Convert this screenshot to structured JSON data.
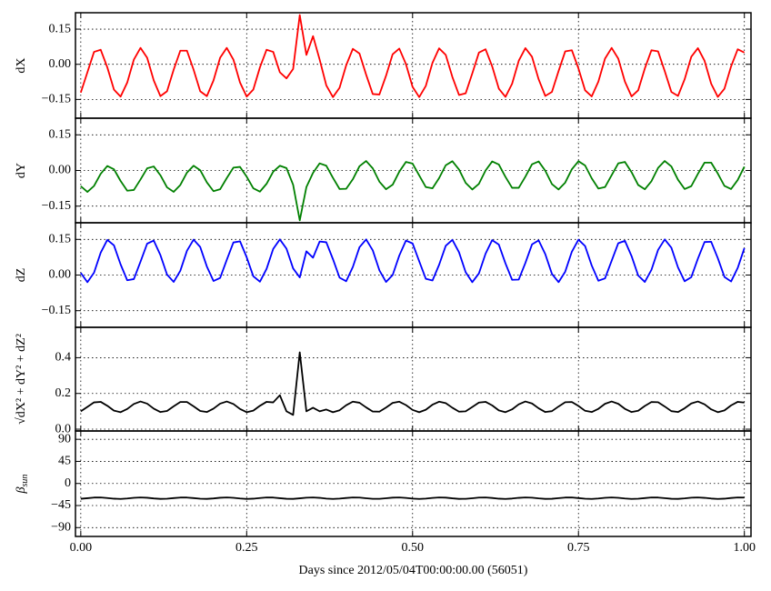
{
  "chart_data": [
    {
      "type": "line",
      "ylabel": "dX",
      "color": "#ff0000",
      "x": [
        0,
        0.01,
        0.02,
        0.03,
        0.04,
        0.05,
        0.06,
        0.07,
        0.08,
        0.09,
        0.1,
        0.11,
        0.12,
        0.13,
        0.14,
        0.15,
        0.16,
        0.17,
        0.18,
        0.19,
        0.2,
        0.21,
        0.22,
        0.23,
        0.24,
        0.25,
        0.26,
        0.27,
        0.28,
        0.29,
        0.3,
        0.31,
        0.32,
        0.33,
        0.34,
        0.35,
        0.36,
        0.37,
        0.38,
        0.39,
        0.4,
        0.41,
        0.42,
        0.43,
        0.44,
        0.45,
        0.46,
        0.47,
        0.48,
        0.49,
        0.5,
        0.51,
        0.52,
        0.53,
        0.54,
        0.55,
        0.56,
        0.57,
        0.58,
        0.59,
        0.6,
        0.61,
        0.62,
        0.63,
        0.64,
        0.65,
        0.66,
        0.67,
        0.68,
        0.69,
        0.7,
        0.71,
        0.72,
        0.73,
        0.74,
        0.75,
        0.76,
        0.77,
        0.78,
        0.79,
        0.8,
        0.81,
        0.82,
        0.83,
        0.84,
        0.85,
        0.86,
        0.87,
        0.88,
        0.89,
        0.9,
        0.91,
        0.92,
        0.93,
        0.94,
        0.95,
        0.96,
        0.97,
        0.98,
        0.99,
        1
      ],
      "values": [
        -0.121,
        -0.034,
        0.053,
        0.062,
        -0.013,
        -0.108,
        -0.138,
        -0.078,
        0.02,
        0.07,
        0.028,
        -0.069,
        -0.136,
        -0.115,
        -0.023,
        0.058,
        0.058,
        -0.023,
        -0.115,
        -0.136,
        -0.069,
        0.028,
        0.07,
        0.02,
        -0.078,
        -0.138,
        -0.108,
        -0.013,
        0.062,
        0.053,
        -0.034,
        -0.06,
        -0.02,
        0.21,
        0.04,
        0.12,
        0.02,
        -0.09,
        -0.14,
        -0.1,
        -0.004,
        0.066,
        0.046,
        -0.044,
        -0.127,
        -0.129,
        -0.049,
        0.043,
        0.067,
        0.001,
        -0.096,
        -0.14,
        -0.092,
        0.006,
        0.068,
        0.04,
        -0.054,
        -0.131,
        -0.124,
        -0.039,
        0.05,
        0.064,
        -0.009,
        -0.104,
        -0.139,
        -0.083,
        0.015,
        0.069,
        0.032,
        -0.064,
        -0.135,
        -0.118,
        -0.029,
        0.055,
        0.06,
        -0.018,
        -0.111,
        -0.137,
        -0.074,
        0.024,
        0.07,
        0.024,
        -0.074,
        -0.137,
        -0.111,
        -0.018,
        0.06,
        0.055,
        -0.029,
        -0.118,
        -0.135,
        -0.064,
        0.032,
        0.069,
        0.015,
        -0.083,
        -0.139,
        -0.104,
        -0.009,
        0.064,
        0.05
      ],
      "xlim": [
        -0.008,
        1.01
      ],
      "ylim": [
        -0.23,
        0.22
      ],
      "yticks": [
        {
          "value": -0.15,
          "label": "−0.15"
        },
        {
          "value": 0,
          "label": "0.00"
        },
        0.15
      ],
      "grid": true
    },
    {
      "type": "line",
      "ylabel": "dY",
      "color": "#008000",
      "x": [
        0,
        0.01,
        0.02,
        0.03,
        0.04,
        0.05,
        0.06,
        0.07,
        0.08,
        0.09,
        0.1,
        0.11,
        0.12,
        0.13,
        0.14,
        0.15,
        0.16,
        0.17,
        0.18,
        0.19,
        0.2,
        0.21,
        0.22,
        0.23,
        0.24,
        0.25,
        0.26,
        0.27,
        0.28,
        0.29,
        0.3,
        0.31,
        0.32,
        0.33,
        0.34,
        0.35,
        0.36,
        0.37,
        0.38,
        0.39,
        0.4,
        0.41,
        0.42,
        0.43,
        0.44,
        0.45,
        0.46,
        0.47,
        0.48,
        0.49,
        0.5,
        0.51,
        0.52,
        0.53,
        0.54,
        0.55,
        0.56,
        0.57,
        0.58,
        0.59,
        0.6,
        0.61,
        0.62,
        0.63,
        0.64,
        0.65,
        0.66,
        0.67,
        0.68,
        0.69,
        0.7,
        0.71,
        0.72,
        0.73,
        0.74,
        0.75,
        0.76,
        0.77,
        0.78,
        0.79,
        0.8,
        0.81,
        0.82,
        0.83,
        0.84,
        0.85,
        0.86,
        0.87,
        0.88,
        0.89,
        0.9,
        0.91,
        0.92,
        0.93,
        0.94,
        0.95,
        0.96,
        0.97,
        0.98,
        0.99,
        1
      ],
      "values": [
        -0.066,
        -0.09,
        -0.065,
        -0.014,
        0.019,
        0.005,
        -0.044,
        -0.085,
        -0.082,
        -0.038,
        0.009,
        0.017,
        -0.02,
        -0.071,
        -0.09,
        -0.061,
        -0.009,
        0.02,
        0.001,
        -0.05,
        -0.087,
        -0.079,
        -0.032,
        0.012,
        0.015,
        -0.026,
        -0.075,
        -0.089,
        -0.056,
        -0.005,
        0.02,
        0.01,
        -0.06,
        -0.21,
        -0.07,
        -0.01,
        0.03,
        0.02,
        -0.031,
        -0.078,
        -0.077,
        -0.037,
        0.018,
        0.04,
        0.009,
        -0.047,
        -0.079,
        -0.06,
        -0.005,
        0.036,
        0.029,
        -0.021,
        -0.07,
        -0.075,
        -0.032,
        0.022,
        0.039,
        0.004,
        -0.052,
        -0.08,
        -0.056,
        0,
        0.038,
        0.025,
        -0.027,
        -0.073,
        -0.073,
        -0.026,
        0.026,
        0.038,
        -0.001,
        -0.057,
        -0.08,
        -0.051,
        0.005,
        0.039,
        0.021,
        -0.033,
        -0.076,
        -0.07,
        -0.02,
        0.03,
        0.036,
        -0.007,
        -0.061,
        -0.079,
        -0.045,
        0.011,
        0.04,
        0.017,
        -0.039,
        -0.078,
        -0.066,
        -0.014,
        0.033,
        0.033,
        -0.013,
        -0.065,
        -0.078,
        -0.04,
        0.016
      ],
      "xlim": [
        -0.008,
        1.01
      ],
      "ylim": [
        -0.22,
        0.22
      ],
      "yticks": [
        {
          "value": -0.15,
          "label": "−0.15"
        },
        {
          "value": 0,
          "label": "0.00"
        },
        0.15
      ],
      "grid": true
    },
    {
      "type": "line",
      "ylabel": "dZ",
      "color": "#0000ff",
      "x": [
        0,
        0.01,
        0.02,
        0.03,
        0.04,
        0.05,
        0.06,
        0.07,
        0.08,
        0.09,
        0.1,
        0.11,
        0.12,
        0.13,
        0.14,
        0.15,
        0.16,
        0.17,
        0.18,
        0.19,
        0.2,
        0.21,
        0.22,
        0.23,
        0.24,
        0.25,
        0.26,
        0.27,
        0.28,
        0.29,
        0.3,
        0.31,
        0.32,
        0.33,
        0.34,
        0.35,
        0.36,
        0.37,
        0.38,
        0.39,
        0.4,
        0.41,
        0.42,
        0.43,
        0.44,
        0.45,
        0.46,
        0.47,
        0.48,
        0.49,
        0.5,
        0.51,
        0.52,
        0.53,
        0.54,
        0.55,
        0.56,
        0.57,
        0.58,
        0.59,
        0.6,
        0.61,
        0.62,
        0.63,
        0.64,
        0.65,
        0.66,
        0.67,
        0.68,
        0.69,
        0.7,
        0.71,
        0.72,
        0.73,
        0.74,
        0.75,
        0.76,
        0.77,
        0.78,
        0.79,
        0.8,
        0.81,
        0.82,
        0.83,
        0.84,
        0.85,
        0.86,
        0.87,
        0.88,
        0.89,
        0.9,
        0.91,
        0.92,
        0.93,
        0.94,
        0.95,
        0.96,
        0.97,
        0.98,
        0.99,
        1
      ],
      "values": [
        0.009,
        -0.03,
        0.01,
        0.094,
        0.148,
        0.125,
        0.045,
        -0.022,
        -0.017,
        0.056,
        0.132,
        0.145,
        0.084,
        0.002,
        -0.029,
        0.018,
        0.102,
        0.149,
        0.118,
        0.036,
        -0.025,
        -0.012,
        0.064,
        0.137,
        0.142,
        0.075,
        -0.005,
        -0.028,
        0.026,
        0.11,
        0.15,
        0.111,
        0.028,
        -0.01,
        0.1,
        0.073,
        0.141,
        0.138,
        0.067,
        -0.011,
        -0.026,
        0.034,
        0.117,
        0.15,
        0.104,
        0.02,
        -0.029,
        0,
        0.082,
        0.145,
        0.133,
        0.058,
        -0.016,
        -0.023,
        0.043,
        0.123,
        0.148,
        0.096,
        0.012,
        -0.03,
        0.007,
        0.09,
        0.147,
        0.128,
        0.049,
        -0.02,
        -0.019,
        0.051,
        0.129,
        0.146,
        0.088,
        0.005,
        -0.03,
        0.014,
        0.098,
        0.149,
        0.122,
        0.04,
        -0.024,
        -0.014,
        0.06,
        0.134,
        0.144,
        0.08,
        -0.002,
        -0.029,
        0.022,
        0.106,
        0.15,
        0.115,
        0.032,
        -0.026,
        -0.009,
        0.069,
        0.139,
        0.14,
        0.071,
        -0.008,
        -0.027,
        0.03,
        0.113
      ],
      "xlim": [
        -0.008,
        1.01
      ],
      "ylim": [
        -0.22,
        0.22
      ],
      "yticks": [
        {
          "value": -0.15,
          "label": "−0.15"
        },
        {
          "value": 0,
          "label": "0.00"
        },
        0.15
      ],
      "grid": true
    },
    {
      "type": "line",
      "ylabel": "√dX² + dY² + dZ²",
      "color": "#000000",
      "x": [
        0,
        0.01,
        0.02,
        0.03,
        0.04,
        0.05,
        0.06,
        0.07,
        0.08,
        0.09,
        0.1,
        0.11,
        0.12,
        0.13,
        0.14,
        0.15,
        0.16,
        0.17,
        0.18,
        0.19,
        0.2,
        0.21,
        0.22,
        0.23,
        0.24,
        0.25,
        0.26,
        0.27,
        0.28,
        0.29,
        0.3,
        0.31,
        0.32,
        0.33,
        0.34,
        0.35,
        0.36,
        0.37,
        0.38,
        0.39,
        0.4,
        0.41,
        0.42,
        0.43,
        0.44,
        0.45,
        0.46,
        0.47,
        0.48,
        0.49,
        0.5,
        0.51,
        0.52,
        0.53,
        0.54,
        0.55,
        0.56,
        0.57,
        0.58,
        0.59,
        0.6,
        0.61,
        0.62,
        0.63,
        0.64,
        0.65,
        0.66,
        0.67,
        0.68,
        0.69,
        0.7,
        0.71,
        0.72,
        0.73,
        0.74,
        0.75,
        0.76,
        0.77,
        0.78,
        0.79,
        0.8,
        0.81,
        0.82,
        0.83,
        0.84,
        0.85,
        0.86,
        0.87,
        0.88,
        0.89,
        0.9,
        0.91,
        0.92,
        0.93,
        0.94,
        0.95,
        0.96,
        0.97,
        0.98,
        0.99,
        1
      ],
      "values": [
        0.1,
        0.125,
        0.15,
        0.153,
        0.131,
        0.104,
        0.095,
        0.113,
        0.141,
        0.155,
        0.143,
        0.115,
        0.096,
        0.102,
        0.128,
        0.152,
        0.152,
        0.128,
        0.102,
        0.096,
        0.115,
        0.143,
        0.155,
        0.141,
        0.113,
        0.095,
        0.104,
        0.131,
        0.153,
        0.15,
        0.19,
        0.1,
        0.08,
        0.43,
        0.1,
        0.12,
        0.1,
        0.11,
        0.095,
        0.106,
        0.134,
        0.154,
        0.148,
        0.122,
        0.099,
        0.098,
        0.121,
        0.147,
        0.154,
        0.135,
        0.108,
        0.095,
        0.109,
        0.137,
        0.154,
        0.146,
        0.12,
        0.098,
        0.1,
        0.124,
        0.149,
        0.153,
        0.133,
        0.105,
        0.095,
        0.111,
        0.139,
        0.155,
        0.144,
        0.117,
        0.096,
        0.101,
        0.127,
        0.151,
        0.152,
        0.13,
        0.103,
        0.096,
        0.114,
        0.142,
        0.155,
        0.142,
        0.114,
        0.096,
        0.103,
        0.13,
        0.152,
        0.151,
        0.127,
        0.101,
        0.096,
        0.117,
        0.144,
        0.155,
        0.139,
        0.111,
        0.095,
        0.105,
        0.133,
        0.153,
        0.149
      ],
      "xlim": [
        -0.008,
        1.01
      ],
      "ylim": [
        -0.01,
        0.57
      ],
      "yticks": [
        {
          "value": 0,
          "label": "0.0"
        },
        0.2,
        0.4
      ],
      "grid": true
    },
    {
      "type": "line",
      "ylabel": "β",
      "ylabel_sub": "sun",
      "color": "#000000",
      "x": [
        0,
        0.01,
        0.02,
        0.03,
        0.04,
        0.05,
        0.06,
        0.07,
        0.08,
        0.09,
        0.1,
        0.11,
        0.12,
        0.13,
        0.14,
        0.15,
        0.16,
        0.17,
        0.18,
        0.19,
        0.2,
        0.21,
        0.22,
        0.23,
        0.24,
        0.25,
        0.26,
        0.27,
        0.28,
        0.29,
        0.3,
        0.31,
        0.32,
        0.33,
        0.34,
        0.35,
        0.36,
        0.37,
        0.38,
        0.39,
        0.4,
        0.41,
        0.42,
        0.43,
        0.44,
        0.45,
        0.46,
        0.47,
        0.48,
        0.49,
        0.5,
        0.51,
        0.52,
        0.53,
        0.54,
        0.55,
        0.56,
        0.57,
        0.58,
        0.59,
        0.6,
        0.61,
        0.62,
        0.63,
        0.64,
        0.65,
        0.66,
        0.67,
        0.68,
        0.69,
        0.7,
        0.71,
        0.72,
        0.73,
        0.74,
        0.75,
        0.76,
        0.77,
        0.78,
        0.79,
        0.8,
        0.81,
        0.82,
        0.83,
        0.84,
        0.85,
        0.86,
        0.87,
        0.88,
        0.89,
        0.9,
        0.91,
        0.92,
        0.93,
        0.94,
        0.95,
        0.96,
        0.97,
        0.98,
        0.99,
        1
      ],
      "values": [
        -31.2,
        -30.0,
        -28.7,
        -28.6,
        -29.7,
        -31.0,
        -31.5,
        -30.6,
        -29.2,
        -28.5,
        -29.1,
        -30.5,
        -31.4,
        -31.1,
        -29.8,
        -28.7,
        -28.7,
        -29.8,
        -31.1,
        -31.4,
        -30.5,
        -29.1,
        -28.5,
        -29.2,
        -30.6,
        -31.5,
        -31.0,
        -29.7,
        -28.6,
        -28.7,
        -30.0,
        -31.2,
        -31.4,
        -30.3,
        -29.0,
        -28.5,
        -29.3,
        -30.8,
        -31.5,
        -30.9,
        -29.6,
        -28.6,
        -28.8,
        -30.1,
        -31.3,
        -31.3,
        -30.2,
        -28.9,
        -28.5,
        -29.5,
        -30.9,
        -31.5,
        -30.8,
        -29.4,
        -28.5,
        -28.9,
        -30.3,
        -31.4,
        -31.3,
        -30.1,
        -28.8,
        -28.6,
        -29.6,
        -31.0,
        -31.5,
        -30.7,
        -29.3,
        -28.5,
        -29.0,
        -30.4,
        -31.4,
        -31.2,
        -29.9,
        -28.7,
        -28.6,
        -29.8,
        -31.1,
        -31.5,
        -30.6,
        -29.2,
        -28.5,
        -29.2,
        -30.6,
        -31.5,
        -31.1,
        -29.8,
        -28.6,
        -28.7,
        -29.9,
        -31.2,
        -31.4,
        -30.4,
        -29.0,
        -28.5,
        -29.3,
        -30.7,
        -31.5,
        -31.0,
        -29.6,
        -28.6,
        -28.8
      ],
      "xlim": [
        -0.008,
        1.01
      ],
      "ylim": [
        -108,
        107
      ],
      "yticks": [
        {
          "value": -90,
          "label": "−90"
        },
        {
          "value": -45,
          "label": "−45"
        },
        0,
        45,
        90
      ],
      "grid": true,
      "xlabel": "Days since 2012/05/04T00:00:00.00 (56051)",
      "xticks": [
        {
          "value": 0,
          "label": "0.00"
        },
        0.25,
        {
          "value": 0.5,
          "label": "0.50"
        },
        0.75,
        {
          "value": 1,
          "label": "1.00"
        }
      ]
    }
  ]
}
